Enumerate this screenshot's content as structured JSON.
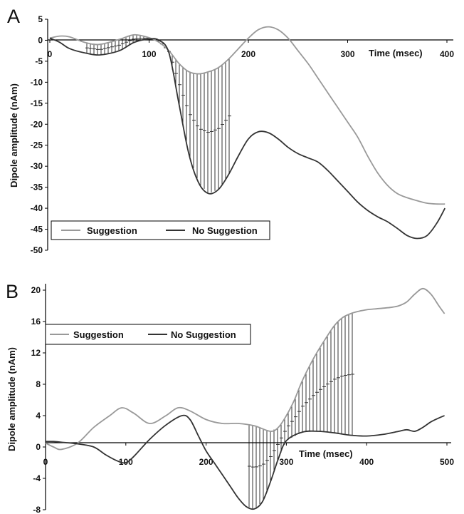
{
  "panels": [
    {
      "id": "A",
      "letter": "A",
      "xlabel": "Time (msec)",
      "ylabel": "Dipole amplitude (nAm)",
      "xlim": [
        0,
        400
      ],
      "ylim": [
        -50,
        5
      ],
      "x_ticks": [
        0,
        100,
        200,
        300,
        400
      ],
      "y_ticks": [
        5,
        0,
        -5,
        -10,
        -15,
        -20,
        -25,
        -30,
        -35,
        -40,
        -45,
        -50
      ],
      "legend": [
        "Suggestion",
        "No Suggestion"
      ],
      "legend_position": "bottom-left",
      "colors": {
        "suggestion": "#999999",
        "no_suggestion": "#333333"
      }
    },
    {
      "id": "B",
      "letter": "B",
      "xlabel": "Time (msec)",
      "ylabel": "Dipole amplitude (nAm)",
      "xlim": [
        0,
        500
      ],
      "ylim": [
        -8,
        20
      ],
      "x_ticks": [
        0,
        100,
        200,
        300,
        400,
        500
      ],
      "y_ticks": [
        20,
        16,
        12,
        8,
        4,
        0,
        -4,
        -8
      ],
      "legend": [
        "Suggestion",
        "No Suggestion"
      ],
      "legend_position": "top-left",
      "colors": {
        "suggestion": "#999999",
        "no_suggestion": "#333333"
      }
    }
  ],
  "chart_data": [
    {
      "type": "line",
      "panel": "A",
      "xlabel": "Time (msec)",
      "ylabel": "Dipole amplitude (nAm)",
      "xlim": [
        0,
        400
      ],
      "ylim": [
        -50,
        5
      ],
      "grid": false,
      "legend_position": "bottom-left",
      "series": [
        {
          "name": "Suggestion",
          "x": [
            0,
            10,
            20,
            35,
            50,
            70,
            85,
            100,
            110,
            120,
            130,
            140,
            150,
            160,
            170,
            180,
            190,
            200,
            210,
            220,
            230,
            240,
            250,
            260,
            270,
            280,
            290,
            300,
            310,
            320,
            330,
            340,
            350,
            360,
            370,
            380,
            390,
            398
          ],
          "y": [
            0.5,
            1.0,
            0.8,
            -0.5,
            -1.0,
            0.2,
            1.3,
            0.6,
            -0.5,
            -2.5,
            -5.5,
            -7.5,
            -8.0,
            -7.5,
            -6.5,
            -4.5,
            -2.0,
            0.5,
            2.5,
            3.2,
            2.5,
            0.5,
            -2.5,
            -5.5,
            -9.0,
            -12.5,
            -16.0,
            -19.5,
            -23.0,
            -27.5,
            -31.5,
            -34.5,
            -36.5,
            -37.5,
            -38.2,
            -38.8,
            -39.0,
            -39.0
          ]
        },
        {
          "name": "No Suggestion",
          "x": [
            0,
            10,
            20,
            35,
            50,
            70,
            85,
            100,
            110,
            120,
            130,
            140,
            150,
            160,
            170,
            180,
            190,
            200,
            210,
            220,
            230,
            240,
            250,
            260,
            270,
            280,
            290,
            300,
            310,
            320,
            330,
            340,
            350,
            360,
            370,
            380,
            390,
            398
          ],
          "y": [
            0.5,
            -0.5,
            -2.0,
            -3.0,
            -3.5,
            -2.5,
            -0.5,
            0.3,
            0.0,
            -3.0,
            -15.0,
            -27.0,
            -34.0,
            -36.5,
            -35.5,
            -32.0,
            -27.5,
            -23.5,
            -21.8,
            -22.0,
            -23.5,
            -25.5,
            -27.0,
            -28.0,
            -29.0,
            -31.0,
            -33.5,
            -36.0,
            -38.5,
            -40.5,
            -42.0,
            -43.2,
            -44.8,
            -46.5,
            -47.2,
            -46.5,
            -43.5,
            -40.0
          ]
        }
      ]
    },
    {
      "type": "line",
      "panel": "B",
      "xlabel": "Time (msec)",
      "ylabel": "Dipole amplitude (nAm)",
      "xlim": [
        0,
        500
      ],
      "ylim": [
        -8,
        20
      ],
      "grid": false,
      "legend_position": "top-left",
      "series": [
        {
          "name": "Suggestion",
          "x": [
            0,
            10,
            20,
            40,
            60,
            80,
            95,
            110,
            130,
            150,
            165,
            180,
            200,
            220,
            240,
            260,
            280,
            290,
            300,
            310,
            320,
            335,
            350,
            360,
            370,
            380,
            390,
            400,
            410,
            420,
            430,
            440,
            450,
            460,
            470,
            480,
            490,
            497
          ],
          "y": [
            0.5,
            0.0,
            -0.3,
            0.5,
            2.5,
            4.0,
            5.0,
            4.3,
            3.0,
            4.0,
            5.0,
            4.6,
            3.5,
            3.0,
            3.0,
            2.7,
            2.0,
            2.5,
            4.0,
            6.0,
            8.5,
            11.5,
            14.0,
            15.5,
            16.5,
            17.0,
            17.3,
            17.5,
            17.6,
            17.7,
            17.8,
            18.0,
            18.5,
            19.5,
            20.2,
            19.5,
            18.0,
            17.0
          ]
        },
        {
          "name": "No Suggestion",
          "x": [
            0,
            10,
            20,
            40,
            60,
            75,
            90,
            100,
            110,
            130,
            150,
            170,
            180,
            190,
            200,
            210,
            220,
            230,
            240,
            250,
            260,
            270,
            280,
            290,
            300,
            320,
            340,
            360,
            380,
            400,
            420,
            440,
            450,
            460,
            470,
            480,
            490,
            497
          ],
          "y": [
            0.7,
            0.7,
            0.6,
            0.4,
            0.0,
            -1.0,
            -1.8,
            -2.0,
            -1.2,
            1.0,
            2.8,
            4.0,
            3.5,
            1.5,
            -0.5,
            -2.0,
            -3.5,
            -5.0,
            -6.5,
            -7.6,
            -7.9,
            -7.0,
            -4.5,
            -1.5,
            0.8,
            1.9,
            2.0,
            1.8,
            1.5,
            1.4,
            1.6,
            2.0,
            2.2,
            2.0,
            2.5,
            3.2,
            3.7,
            4.0
          ]
        }
      ]
    }
  ]
}
